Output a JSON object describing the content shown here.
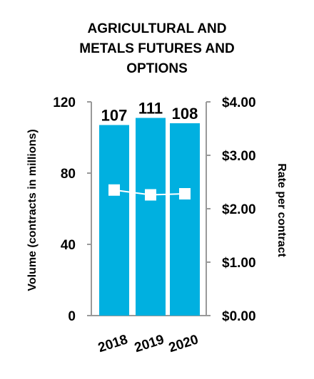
{
  "chart_data": {
    "type": "bar",
    "title_lines": [
      "AGRICULTURAL AND",
      "METALS FUTURES AND",
      "OPTIONS"
    ],
    "categories": [
      "2018",
      "2019",
      "2020"
    ],
    "series": [
      {
        "values": [
          107,
          111,
          108
        ],
        "axis": "left",
        "color": "#00b0e0"
      },
      {
        "type": "line",
        "values": [
          2.35,
          2.26,
          2.28
        ],
        "axis": "right",
        "color": "#ffffff"
      }
    ],
    "bar_labels": [
      "107",
      "111",
      "108"
    ],
    "ylabel": "Volume (contracts in millions)",
    "y2label": "Rate per contract",
    "ylim": [
      0,
      120
    ],
    "y2lim": [
      0,
      4
    ],
    "yticks": [
      0,
      40,
      80,
      120
    ],
    "yticklabels": [
      "0",
      "40",
      "80",
      "120"
    ],
    "y2ticks": [
      0,
      1,
      2,
      3,
      4
    ],
    "y2ticklabels": [
      "$0.00",
      "$1.00",
      "$2.00",
      "$3.00",
      "$4.00"
    ],
    "grid": false,
    "legend": "none",
    "axis_color": "#999999"
  }
}
